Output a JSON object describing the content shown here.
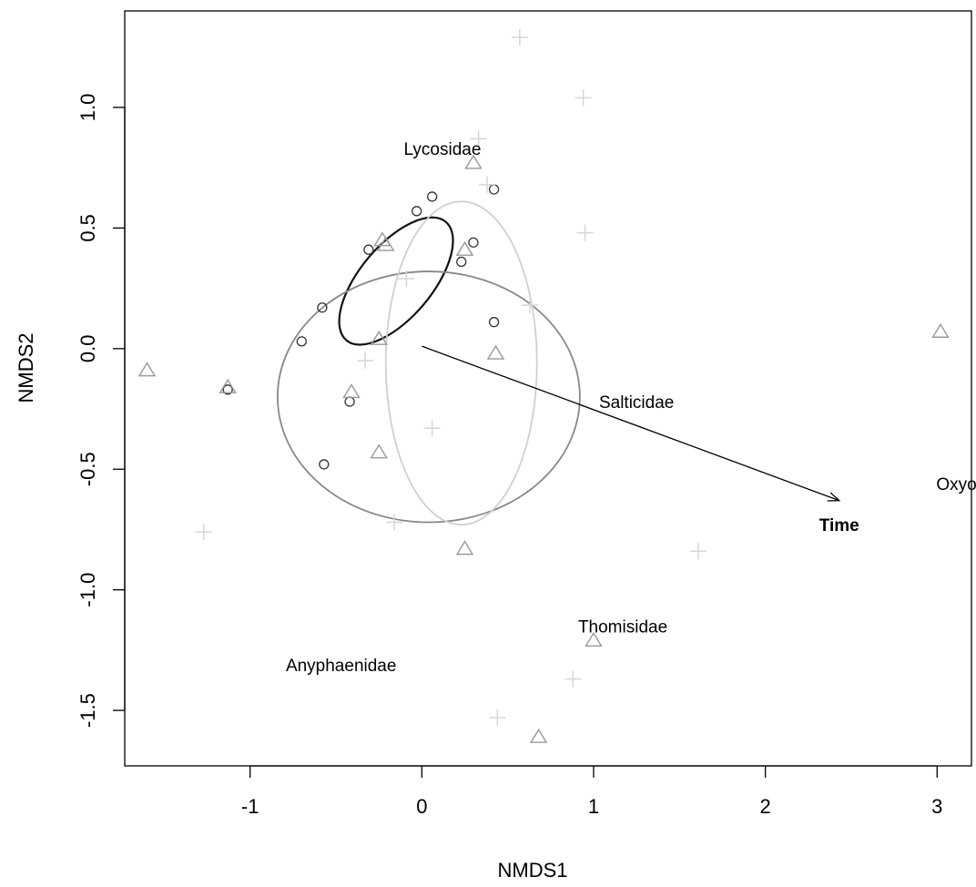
{
  "chart_data": {
    "type": "scatter",
    "xlabel": "NMDS1",
    "ylabel": "NMDS2",
    "xlim": [
      -1.73,
      3.2
    ],
    "ylim": [
      -1.73,
      1.4
    ],
    "x_ticks": [
      -1,
      0,
      1,
      2,
      3
    ],
    "y_ticks": [
      -1.5,
      -1.0,
      -0.5,
      0.0,
      0.5,
      1.0
    ],
    "x_tick_labels": [
      "-1",
      "0",
      "1",
      "2",
      "3"
    ],
    "y_tick_labels": [
      "-1.5",
      "-1.0",
      "-0.5",
      "0.0",
      "0.5",
      "1.0"
    ],
    "grid": false,
    "legend": "none",
    "series": [
      {
        "marker": "circle",
        "color": "#333333",
        "points": [
          [
            -0.31,
            0.41
          ],
          [
            -0.58,
            0.17
          ],
          [
            -0.7,
            0.03
          ],
          [
            -0.03,
            0.57
          ],
          [
            0.06,
            0.63
          ],
          [
            0.42,
            0.66
          ],
          [
            0.3,
            0.44
          ],
          [
            0.23,
            0.36
          ],
          [
            0.42,
            0.11
          ],
          [
            -0.42,
            -0.22
          ],
          [
            -1.13,
            -0.17
          ],
          [
            -0.57,
            -0.48
          ]
        ]
      },
      {
        "marker": "triangle",
        "color": "#999999",
        "points": [
          [
            0.3,
            0.77
          ],
          [
            -0.23,
            0.45
          ],
          [
            0.25,
            0.41
          ],
          [
            -0.21,
            0.43
          ],
          [
            -0.25,
            0.04
          ],
          [
            0.43,
            -0.02
          ],
          [
            -1.6,
            -0.09
          ],
          [
            -1.13,
            -0.16
          ],
          [
            -0.41,
            -0.18
          ],
          [
            -0.25,
            -0.43
          ],
          [
            0.25,
            -0.83
          ],
          [
            1.0,
            -1.21
          ],
          [
            0.68,
            -1.61
          ],
          [
            3.02,
            0.07
          ]
        ]
      },
      {
        "marker": "plus",
        "color": "#d6d6d6",
        "points": [
          [
            0.57,
            1.29
          ],
          [
            0.94,
            1.04
          ],
          [
            0.33,
            0.87
          ],
          [
            0.38,
            0.68
          ],
          [
            0.95,
            0.48
          ],
          [
            -0.09,
            0.29
          ],
          [
            0.63,
            0.18
          ],
          [
            -0.33,
            -0.05
          ],
          [
            0.06,
            -0.33
          ],
          [
            -1.27,
            -0.76
          ],
          [
            -0.16,
            -0.72
          ],
          [
            1.61,
            -0.84
          ],
          [
            0.88,
            -1.37
          ],
          [
            0.44,
            -1.53
          ]
        ]
      }
    ],
    "ellipses": [
      {
        "cx": -0.15,
        "cy": 0.28,
        "rx": 0.45,
        "ry": 0.15,
        "angle_deg": 50,
        "color": "#111111"
      },
      {
        "cx": 0.04,
        "cy": -0.2,
        "rx": 0.88,
        "ry": 0.52,
        "angle_deg": 0,
        "color": "#888888"
      },
      {
        "cx": 0.23,
        "cy": -0.06,
        "rx": 0.44,
        "ry": 0.67,
        "angle_deg": 0,
        "color": "#d0d0d0"
      }
    ],
    "arrow": {
      "from": [
        0.0,
        0.01
      ],
      "to": [
        2.43,
        -0.63
      ],
      "label": "Time",
      "label_at": [
        2.43,
        -0.73
      ]
    },
    "annotations": [
      {
        "text": "Lycosidae",
        "x": 0.12,
        "y": 0.83
      },
      {
        "text": "Salticidae",
        "x": 1.25,
        "y": -0.22
      },
      {
        "text": "Oxyopid",
        "x": 3.18,
        "y": -0.56
      },
      {
        "text": "Thomisidae",
        "x": 1.17,
        "y": -1.15
      },
      {
        "text": "Anyphaenidae",
        "x": -0.47,
        "y": -1.31
      }
    ]
  }
}
